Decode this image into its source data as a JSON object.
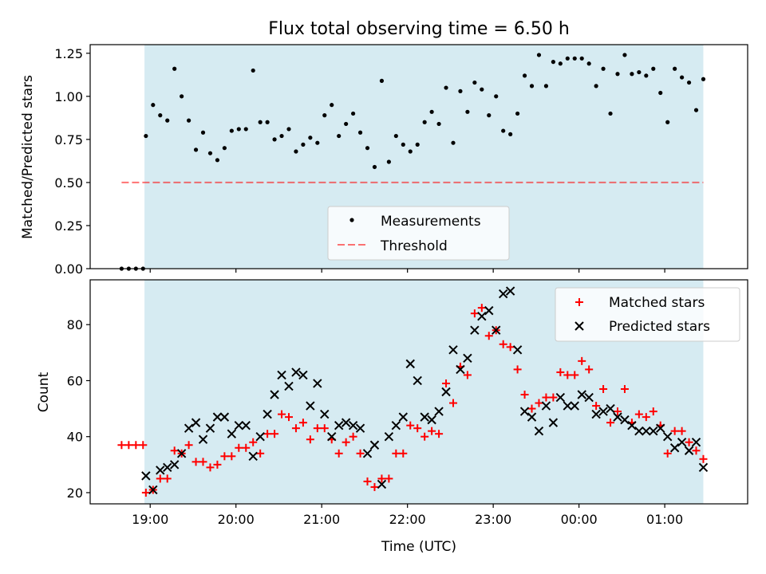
{
  "chart_data": [
    {
      "type": "scatter",
      "title": "Flux total observing time = 6.50 h",
      "xlabel": "",
      "ylabel": "Matched/Predicted stars",
      "ylim": [
        0,
        1.3
      ],
      "yticks": [
        "0.00",
        "0.25",
        "0.50",
        "0.75",
        "1.00",
        "1.25"
      ],
      "xlim": [
        "18:18",
        "01:58"
      ],
      "xticks": [
        "19:00",
        "20:00",
        "21:00",
        "22:00",
        "23:00",
        "00:00",
        "01:00"
      ],
      "observing_window": [
        "18:56",
        "01:27"
      ],
      "legend_position": "lower center",
      "threshold": {
        "name": "Threshold",
        "value": 0.5,
        "x": [
          "18:40",
          "01:27"
        ]
      },
      "series": [
        {
          "name": "Measurements",
          "points": [
            [
              "18:40",
              0.0
            ],
            [
              "18:45",
              0.0
            ],
            [
              "18:50",
              0.0
            ],
            [
              "18:55",
              0.0
            ],
            [
              "18:57",
              0.77
            ],
            [
              "19:02",
              0.95
            ],
            [
              "19:07",
              0.89
            ],
            [
              "19:12",
              0.86
            ],
            [
              "19:17",
              1.16
            ],
            [
              "19:22",
              1.0
            ],
            [
              "19:27",
              0.86
            ],
            [
              "19:32",
              0.69
            ],
            [
              "19:37",
              0.79
            ],
            [
              "19:42",
              0.67
            ],
            [
              "19:47",
              0.63
            ],
            [
              "19:52",
              0.7
            ],
            [
              "19:57",
              0.8
            ],
            [
              "20:02",
              0.81
            ],
            [
              "20:07",
              0.81
            ],
            [
              "20:12",
              1.15
            ],
            [
              "20:17",
              0.85
            ],
            [
              "20:22",
              0.85
            ],
            [
              "20:27",
              0.75
            ],
            [
              "20:32",
              0.77
            ],
            [
              "20:37",
              0.81
            ],
            [
              "20:42",
              0.68
            ],
            [
              "20:47",
              0.72
            ],
            [
              "20:52",
              0.76
            ],
            [
              "20:57",
              0.73
            ],
            [
              "21:02",
              0.89
            ],
            [
              "21:07",
              0.95
            ],
            [
              "21:12",
              0.77
            ],
            [
              "21:17",
              0.84
            ],
            [
              "21:22",
              0.9
            ],
            [
              "21:27",
              0.79
            ],
            [
              "21:32",
              0.7
            ],
            [
              "21:37",
              0.59
            ],
            [
              "21:42",
              1.09
            ],
            [
              "21:47",
              0.62
            ],
            [
              "21:52",
              0.77
            ],
            [
              "21:57",
              0.72
            ],
            [
              "22:02",
              0.68
            ],
            [
              "22:07",
              0.72
            ],
            [
              "22:12",
              0.85
            ],
            [
              "22:17",
              0.91
            ],
            [
              "22:22",
              0.84
            ],
            [
              "22:27",
              1.05
            ],
            [
              "22:32",
              0.73
            ],
            [
              "22:37",
              1.03
            ],
            [
              "22:42",
              0.91
            ],
            [
              "22:47",
              1.08
            ],
            [
              "22:52",
              1.04
            ],
            [
              "22:57",
              0.89
            ],
            [
              "23:02",
              1.0
            ],
            [
              "23:07",
              0.8
            ],
            [
              "23:12",
              0.78
            ],
            [
              "23:17",
              0.9
            ],
            [
              "23:22",
              1.12
            ],
            [
              "23:27",
              1.06
            ],
            [
              "23:32",
              1.24
            ],
            [
              "23:37",
              1.06
            ],
            [
              "23:42",
              1.2
            ],
            [
              "23:47",
              1.19
            ],
            [
              "23:52",
              1.22
            ],
            [
              "23:57",
              1.22
            ],
            [
              "00:02",
              1.22
            ],
            [
              "00:07",
              1.19
            ],
            [
              "00:12",
              1.06
            ],
            [
              "00:17",
              1.16
            ],
            [
              "00:22",
              0.9
            ],
            [
              "00:27",
              1.13
            ],
            [
              "00:32",
              1.24
            ],
            [
              "00:37",
              1.13
            ],
            [
              "00:42",
              1.14
            ],
            [
              "00:47",
              1.12
            ],
            [
              "00:52",
              1.16
            ],
            [
              "00:57",
              1.02
            ],
            [
              "01:02",
              0.85
            ],
            [
              "01:07",
              1.16
            ],
            [
              "01:12",
              1.11
            ],
            [
              "01:17",
              1.08
            ],
            [
              "01:22",
              0.92
            ],
            [
              "01:27",
              1.1
            ]
          ]
        }
      ]
    },
    {
      "type": "scatter",
      "title": "",
      "xlabel": "Time (UTC)",
      "ylabel": "Count",
      "ylim": [
        16,
        96
      ],
      "yticks": [
        "20",
        "40",
        "60",
        "80"
      ],
      "xlim": [
        "18:18",
        "01:58"
      ],
      "xticks": [
        "19:00",
        "20:00",
        "21:00",
        "22:00",
        "23:00",
        "00:00",
        "01:00"
      ],
      "observing_window": [
        "18:56",
        "01:27"
      ],
      "legend_position": "upper right",
      "series": [
        {
          "name": "Matched stars",
          "color": "#ff0000",
          "marker": "+",
          "points": [
            [
              "18:40",
              37
            ],
            [
              "18:45",
              37
            ],
            [
              "18:50",
              37
            ],
            [
              "18:55",
              37
            ],
            [
              "18:57",
              20
            ],
            [
              "19:02",
              21
            ],
            [
              "19:07",
              25
            ],
            [
              "19:12",
              25
            ],
            [
              "19:17",
              35
            ],
            [
              "19:22",
              34
            ],
            [
              "19:27",
              37
            ],
            [
              "19:32",
              31
            ],
            [
              "19:37",
              31
            ],
            [
              "19:42",
              29
            ],
            [
              "19:47",
              30
            ],
            [
              "19:52",
              33
            ],
            [
              "19:57",
              33
            ],
            [
              "20:02",
              36
            ],
            [
              "20:07",
              36
            ],
            [
              "20:12",
              38
            ],
            [
              "20:17",
              34
            ],
            [
              "20:22",
              41
            ],
            [
              "20:27",
              41
            ],
            [
              "20:32",
              48
            ],
            [
              "20:37",
              47
            ],
            [
              "20:42",
              43
            ],
            [
              "20:47",
              45
            ],
            [
              "20:52",
              39
            ],
            [
              "20:57",
              43
            ],
            [
              "21:02",
              43
            ],
            [
              "21:07",
              39
            ],
            [
              "21:12",
              34
            ],
            [
              "21:17",
              38
            ],
            [
              "21:22",
              40
            ],
            [
              "21:27",
              34
            ],
            [
              "21:32",
              24
            ],
            [
              "21:37",
              22
            ],
            [
              "21:42",
              25
            ],
            [
              "21:47",
              25
            ],
            [
              "21:52",
              34
            ],
            [
              "21:57",
              34
            ],
            [
              "22:02",
              44
            ],
            [
              "22:07",
              43
            ],
            [
              "22:12",
              40
            ],
            [
              "22:17",
              42
            ],
            [
              "22:22",
              41
            ],
            [
              "22:27",
              59
            ],
            [
              "22:32",
              52
            ],
            [
              "22:37",
              65
            ],
            [
              "22:42",
              62
            ],
            [
              "22:47",
              84
            ],
            [
              "22:52",
              86
            ],
            [
              "22:57",
              76
            ],
            [
              "23:02",
              78
            ],
            [
              "23:07",
              73
            ],
            [
              "23:12",
              72
            ],
            [
              "23:17",
              64
            ],
            [
              "23:22",
              55
            ],
            [
              "23:27",
              50
            ],
            [
              "23:32",
              52
            ],
            [
              "23:37",
              54
            ],
            [
              "23:42",
              54
            ],
            [
              "23:47",
              63
            ],
            [
              "23:52",
              62
            ],
            [
              "23:57",
              62
            ],
            [
              "00:02",
              67
            ],
            [
              "00:07",
              64
            ],
            [
              "00:12",
              51
            ],
            [
              "00:17",
              57
            ],
            [
              "00:22",
              45
            ],
            [
              "00:27",
              49
            ],
            [
              "00:32",
              57
            ],
            [
              "00:37",
              45
            ],
            [
              "00:42",
              48
            ],
            [
              "00:47",
              47
            ],
            [
              "00:52",
              49
            ],
            [
              "00:57",
              44
            ],
            [
              "01:02",
              34
            ],
            [
              "01:07",
              42
            ],
            [
              "01:12",
              42
            ],
            [
              "01:17",
              38
            ],
            [
              "01:22",
              35
            ],
            [
              "01:27",
              32
            ]
          ]
        },
        {
          "name": "Predicted stars",
          "color": "#000000",
          "marker": "x",
          "points": [
            [
              "18:57",
              26
            ],
            [
              "19:02",
              21
            ],
            [
              "19:07",
              28
            ],
            [
              "19:12",
              29
            ],
            [
              "19:17",
              30
            ],
            [
              "19:22",
              34
            ],
            [
              "19:27",
              43
            ],
            [
              "19:32",
              45
            ],
            [
              "19:37",
              39
            ],
            [
              "19:42",
              43
            ],
            [
              "19:47",
              47
            ],
            [
              "19:52",
              47
            ],
            [
              "19:57",
              41
            ],
            [
              "20:02",
              44
            ],
            [
              "20:07",
              44
            ],
            [
              "20:12",
              33
            ],
            [
              "20:17",
              40
            ],
            [
              "20:22",
              48
            ],
            [
              "20:27",
              55
            ],
            [
              "20:32",
              62
            ],
            [
              "20:37",
              58
            ],
            [
              "20:42",
              63
            ],
            [
              "20:47",
              62
            ],
            [
              "20:52",
              51
            ],
            [
              "20:57",
              59
            ],
            [
              "21:02",
              48
            ],
            [
              "21:07",
              40
            ],
            [
              "21:12",
              44
            ],
            [
              "21:17",
              45
            ],
            [
              "21:22",
              44
            ],
            [
              "21:27",
              43
            ],
            [
              "21:32",
              34
            ],
            [
              "21:37",
              37
            ],
            [
              "21:42",
              23
            ],
            [
              "21:47",
              40
            ],
            [
              "21:52",
              44
            ],
            [
              "21:57",
              47
            ],
            [
              "22:02",
              66
            ],
            [
              "22:07",
              60
            ],
            [
              "22:12",
              47
            ],
            [
              "22:17",
              46
            ],
            [
              "22:22",
              49
            ],
            [
              "22:27",
              56
            ],
            [
              "22:32",
              71
            ],
            [
              "22:37",
              64
            ],
            [
              "22:42",
              68
            ],
            [
              "22:47",
              78
            ],
            [
              "22:52",
              83
            ],
            [
              "22:57",
              85
            ],
            [
              "23:02",
              78
            ],
            [
              "23:07",
              91
            ],
            [
              "23:12",
              92
            ],
            [
              "23:17",
              71
            ],
            [
              "23:22",
              49
            ],
            [
              "23:27",
              47
            ],
            [
              "23:32",
              42
            ],
            [
              "23:37",
              51
            ],
            [
              "23:42",
              45
            ],
            [
              "23:47",
              54
            ],
            [
              "23:52",
              51
            ],
            [
              "23:57",
              51
            ],
            [
              "00:02",
              55
            ],
            [
              "00:07",
              54
            ],
            [
              "00:12",
              48
            ],
            [
              "00:17",
              49
            ],
            [
              "00:22",
              50
            ],
            [
              "00:27",
              47
            ],
            [
              "00:32",
              46
            ],
            [
              "00:37",
              44
            ],
            [
              "00:42",
              42
            ],
            [
              "00:47",
              42
            ],
            [
              "00:52",
              42
            ],
            [
              "00:57",
              43
            ],
            [
              "01:02",
              40
            ],
            [
              "01:07",
              36
            ],
            [
              "01:12",
              38
            ],
            [
              "01:17",
              35
            ],
            [
              "01:22",
              38
            ],
            [
              "01:27",
              29
            ]
          ]
        }
      ]
    }
  ]
}
